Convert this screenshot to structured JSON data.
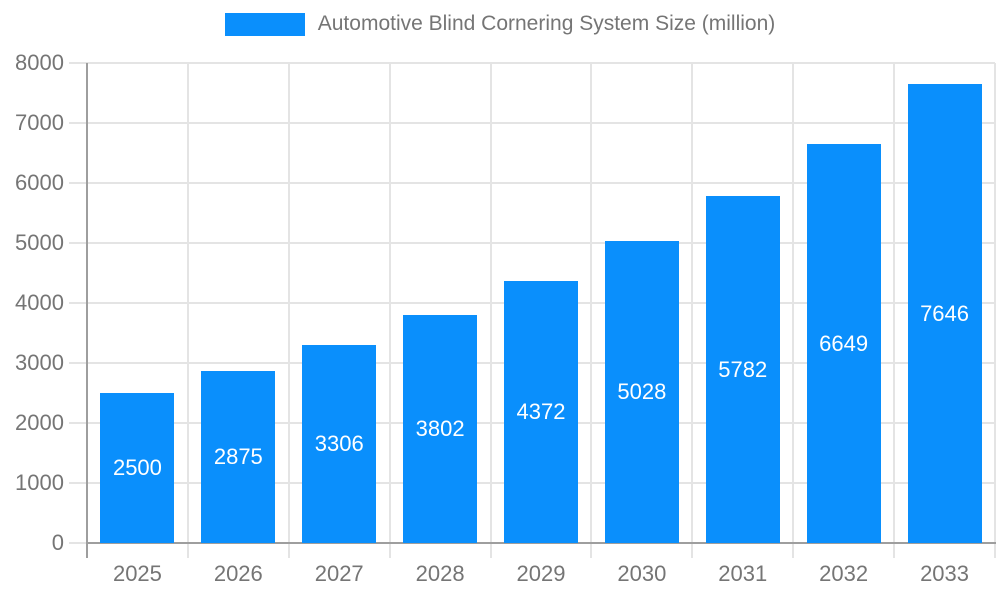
{
  "legend": {
    "label": "Automotive Blind Cornering System Size (million)"
  },
  "chart_data": {
    "type": "bar",
    "title": "",
    "categories": [
      "2025",
      "2026",
      "2027",
      "2028",
      "2029",
      "2030",
      "2031",
      "2032",
      "2033"
    ],
    "series": [
      {
        "name": "Automotive Blind Cornering System Size (million)",
        "values": [
          2500,
          2875,
          3306,
          3802,
          4372,
          5028,
          5782,
          6649,
          7646
        ]
      }
    ],
    "data_labels": [
      "2500",
      "2875",
      "3306",
      "3802",
      "4372",
      "5028",
      "5782",
      "6649",
      "7646"
    ],
    "xlabel": "",
    "ylabel": "",
    "ylim": [
      0,
      8000
    ],
    "ytick_interval": 1000,
    "ytick_labels": [
      "0",
      "1000",
      "2000",
      "3000",
      "4000",
      "5000",
      "6000",
      "7000",
      "8000"
    ],
    "grid": true,
    "legend_position": "top",
    "colors": {
      "bar": "#0a8ffc",
      "grid": "#e4e4e4",
      "axis": "#9e9e9e",
      "text": "#757575",
      "data_label": "#ffffff",
      "background": "#ffffff"
    }
  }
}
